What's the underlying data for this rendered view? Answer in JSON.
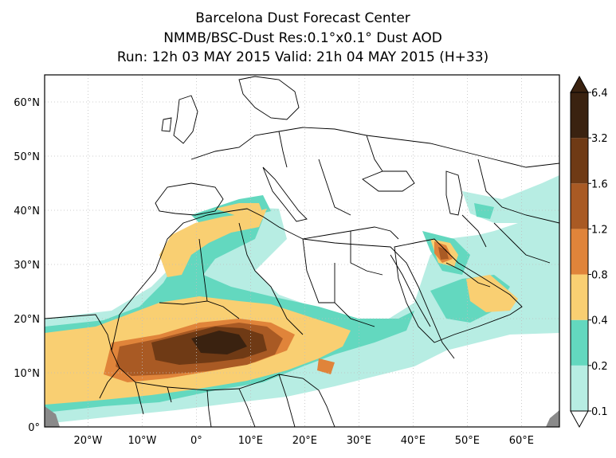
{
  "header": {
    "center": "Barcelona Dust Forecast Center",
    "model_line": "NMMB/BSC-Dust   Res:0.1°x0.1°   Dust AOD",
    "run_line": "Run: 12h 03 MAY 2015   Valid: 21h 04 MAY 2015 (H+33)"
  },
  "map": {
    "lon_range": [
      -28,
      67
    ],
    "lat_range": [
      0,
      65
    ],
    "lat_ticks": [
      {
        "value": 0,
        "label": "0°"
      },
      {
        "value": 10,
        "label": "10°N"
      },
      {
        "value": 20,
        "label": "20°N"
      },
      {
        "value": 30,
        "label": "30°N"
      },
      {
        "value": 40,
        "label": "40°N"
      },
      {
        "value": 50,
        "label": "50°N"
      },
      {
        "value": 60,
        "label": "60°N"
      }
    ],
    "lon_ticks": [
      {
        "value": -20,
        "label": "20°W"
      },
      {
        "value": -10,
        "label": "10°W"
      },
      {
        "value": 0,
        "label": "0°"
      },
      {
        "value": 10,
        "label": "10°E"
      },
      {
        "value": 20,
        "label": "20°E"
      },
      {
        "value": 30,
        "label": "30°E"
      },
      {
        "value": 40,
        "label": "40°E"
      },
      {
        "value": 50,
        "label": "50°E"
      },
      {
        "value": 60,
        "label": "60°E"
      }
    ],
    "gridlines": true
  },
  "colorbar": {
    "levels": [
      "0.1",
      "0.2",
      "0.4",
      "0.8",
      "1.2",
      "1.6",
      "3.2",
      "6.4"
    ],
    "colors": [
      "#ffffff",
      "#b7ede3",
      "#63d8bf",
      "#f9cf72",
      "#e0843a",
      "#a95a24",
      "#6f3a15",
      "#3a2210"
    ]
  }
}
